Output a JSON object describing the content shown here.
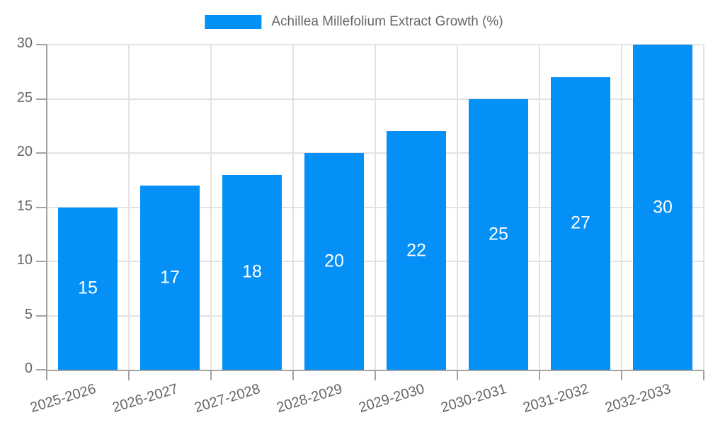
{
  "chart_data": {
    "type": "bar",
    "title": "Achillea Millefolium Extract Growth (%)",
    "categories": [
      "2025-2026",
      "2026-2027",
      "2027-2028",
      "2028-2029",
      "2029-2030",
      "2030-2031",
      "2031-2032",
      "2032-2033"
    ],
    "values": [
      15,
      17,
      18,
      20,
      22,
      25,
      27,
      30
    ],
    "xlabel": "",
    "ylabel": "",
    "ylim": [
      0,
      30
    ],
    "yticks": [
      0,
      5,
      10,
      15,
      20,
      25,
      30
    ],
    "grid": true,
    "legend_position": "top",
    "bar_color": "#0590f8",
    "value_label_color": "#ffffff",
    "grid_color": "#e3e3e3",
    "axis_color": "#a3a3a3",
    "tick_label_color": "#666666"
  }
}
